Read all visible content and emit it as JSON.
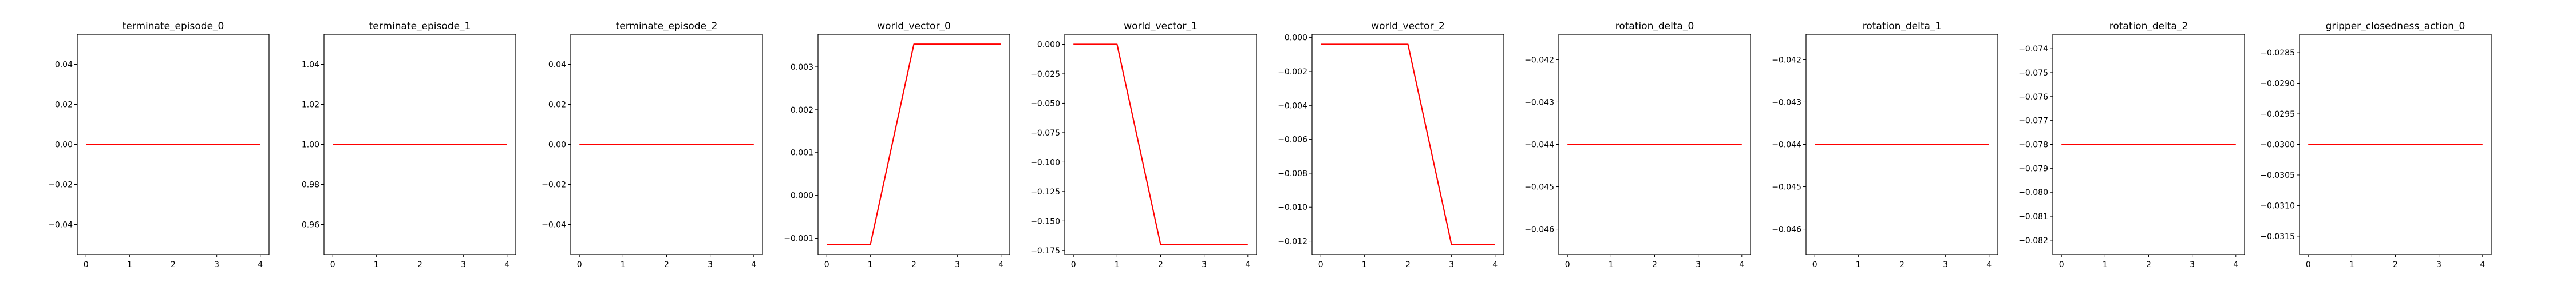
{
  "line_color": "#ff0000",
  "chart_data": [
    {
      "type": "line",
      "title": "terminate_episode_0",
      "x": [
        0,
        1,
        2,
        3,
        4
      ],
      "y": [
        0,
        0,
        0,
        0,
        0
      ],
      "xlim": [
        -0.2,
        4.2
      ],
      "ylim": [
        -0.055,
        0.055
      ],
      "yticks": [
        -0.04,
        -0.02,
        0.0,
        0.02,
        0.04
      ],
      "ytick_labels": [
        "−0.04",
        "−0.02",
        "0.00",
        "0.02",
        "0.04"
      ],
      "xticks": [
        0,
        1,
        2,
        3,
        4
      ],
      "xtick_labels": [
        "0",
        "1",
        "2",
        "3",
        "4"
      ]
    },
    {
      "type": "line",
      "title": "terminate_episode_1",
      "x": [
        0,
        1,
        2,
        3,
        4
      ],
      "y": [
        1,
        1,
        1,
        1,
        1
      ],
      "xlim": [
        -0.2,
        4.2
      ],
      "ylim": [
        0.945,
        1.055
      ],
      "yticks": [
        0.96,
        0.98,
        1.0,
        1.02,
        1.04
      ],
      "ytick_labels": [
        "0.96",
        "0.98",
        "1.00",
        "1.02",
        "1.04"
      ],
      "xticks": [
        0,
        1,
        2,
        3,
        4
      ],
      "xtick_labels": [
        "0",
        "1",
        "2",
        "3",
        "4"
      ]
    },
    {
      "type": "line",
      "title": "terminate_episode_2",
      "x": [
        0,
        1,
        2,
        3,
        4
      ],
      "y": [
        0,
        0,
        0,
        0,
        0
      ],
      "xlim": [
        -0.2,
        4.2
      ],
      "ylim": [
        -0.055,
        0.055
      ],
      "yticks": [
        -0.04,
        -0.02,
        0.0,
        0.02,
        0.04
      ],
      "ytick_labels": [
        "−0.04",
        "−0.02",
        "0.00",
        "0.02",
        "0.04"
      ],
      "xticks": [
        0,
        1,
        2,
        3,
        4
      ],
      "xtick_labels": [
        "0",
        "1",
        "2",
        "3",
        "4"
      ]
    },
    {
      "type": "line",
      "title": "world_vector_0",
      "x": [
        0,
        1,
        2,
        3,
        4
      ],
      "y": [
        -0.00115,
        -0.00115,
        0.00353,
        0.00353,
        0.00353
      ],
      "xlim": [
        -0.2,
        4.2
      ],
      "ylim": [
        -0.00138,
        0.00376
      ],
      "yticks": [
        -0.001,
        0.0,
        0.001,
        0.002,
        0.003
      ],
      "ytick_labels": [
        "−0.001",
        "0.000",
        "0.001",
        "0.002",
        "0.003"
      ],
      "xticks": [
        0,
        1,
        2,
        3,
        4
      ],
      "xtick_labels": [
        "0",
        "1",
        "2",
        "3",
        "4"
      ]
    },
    {
      "type": "line",
      "title": "world_vector_1",
      "x": [
        0,
        1,
        2,
        3,
        4
      ],
      "y": [
        0.0,
        0.0,
        -0.17,
        -0.17,
        -0.17
      ],
      "xlim": [
        -0.2,
        4.2
      ],
      "ylim": [
        -0.1785,
        0.0085
      ],
      "yticks": [
        0.0,
        -0.025,
        -0.05,
        -0.075,
        -0.1,
        -0.125,
        -0.15,
        -0.175
      ],
      "ytick_labels": [
        "0.000",
        "−0.025",
        "−0.050",
        "−0.075",
        "−0.100",
        "−0.125",
        "−0.150",
        "−0.175"
      ],
      "xticks": [
        0,
        1,
        2,
        3,
        4
      ],
      "xtick_labels": [
        "0",
        "1",
        "2",
        "3",
        "4"
      ]
    },
    {
      "type": "line",
      "title": "world_vector_2",
      "x": [
        0,
        1,
        2,
        3,
        4
      ],
      "y": [
        -0.0004,
        -0.0004,
        -0.0004,
        -0.0122,
        -0.0122
      ],
      "xlim": [
        -0.2,
        4.2
      ],
      "ylim": [
        -0.01279,
        0.00019
      ],
      "yticks": [
        0.0,
        -0.002,
        -0.004,
        -0.006,
        -0.008,
        -0.01,
        -0.012
      ],
      "ytick_labels": [
        "0.000",
        "−0.002",
        "−0.004",
        "−0.006",
        "−0.008",
        "−0.010",
        "−0.012"
      ],
      "xticks": [
        0,
        1,
        2,
        3,
        4
      ],
      "xtick_labels": [
        "0",
        "1",
        "2",
        "3",
        "4"
      ]
    },
    {
      "type": "line",
      "title": "rotation_delta_0",
      "x": [
        0,
        1,
        2,
        3,
        4
      ],
      "y": [
        -0.044,
        -0.044,
        -0.044,
        -0.044,
        -0.044
      ],
      "xlim": [
        -0.2,
        4.2
      ],
      "ylim": [
        -0.0466,
        -0.0414
      ],
      "yticks": [
        -0.046,
        -0.045,
        -0.044,
        -0.043,
        -0.042
      ],
      "ytick_labels": [
        "−0.046",
        "−0.045",
        "−0.044",
        "−0.043",
        "−0.042"
      ],
      "xticks": [
        0,
        1,
        2,
        3,
        4
      ],
      "xtick_labels": [
        "0",
        "1",
        "2",
        "3",
        "4"
      ]
    },
    {
      "type": "line",
      "title": "rotation_delta_1",
      "x": [
        0,
        1,
        2,
        3,
        4
      ],
      "y": [
        -0.044,
        -0.044,
        -0.044,
        -0.044,
        -0.044
      ],
      "xlim": [
        -0.2,
        4.2
      ],
      "ylim": [
        -0.0466,
        -0.0414
      ],
      "yticks": [
        -0.046,
        -0.045,
        -0.044,
        -0.043,
        -0.042
      ],
      "ytick_labels": [
        "−0.046",
        "−0.045",
        "−0.044",
        "−0.043",
        "−0.042"
      ],
      "xticks": [
        0,
        1,
        2,
        3,
        4
      ],
      "xtick_labels": [
        "0",
        "1",
        "2",
        "3",
        "4"
      ]
    },
    {
      "type": "line",
      "title": "rotation_delta_2",
      "x": [
        0,
        1,
        2,
        3,
        4
      ],
      "y": [
        -0.078,
        -0.078,
        -0.078,
        -0.078,
        -0.078
      ],
      "xlim": [
        -0.2,
        4.2
      ],
      "ylim": [
        -0.0826,
        -0.0734
      ],
      "yticks": [
        -0.082,
        -0.081,
        -0.08,
        -0.079,
        -0.078,
        -0.077,
        -0.076,
        -0.075,
        -0.074
      ],
      "ytick_labels": [
        "−0.082",
        "−0.081",
        "−0.080",
        "−0.079",
        "−0.078",
        "−0.077",
        "−0.076",
        "−0.075",
        "−0.074"
      ],
      "xticks": [
        0,
        1,
        2,
        3,
        4
      ],
      "xtick_labels": [
        "0",
        "1",
        "2",
        "3",
        "4"
      ]
    },
    {
      "type": "line",
      "title": "gripper_closedness_action_0",
      "x": [
        0,
        1,
        2,
        3,
        4
      ],
      "y": [
        -0.03,
        -0.03,
        -0.03,
        -0.03,
        -0.03
      ],
      "xlim": [
        -0.2,
        4.2
      ],
      "ylim": [
        -0.0318,
        -0.0282
      ],
      "yticks": [
        -0.0315,
        -0.031,
        -0.0305,
        -0.03,
        -0.0295,
        -0.029,
        -0.0285
      ],
      "ytick_labels": [
        "−0.0315",
        "−0.0310",
        "−0.0305",
        "−0.0300",
        "−0.0295",
        "−0.0290",
        "−0.0285"
      ],
      "xticks": [
        0,
        1,
        2,
        3,
        4
      ],
      "xtick_labels": [
        "0",
        "1",
        "2",
        "3",
        "4"
      ]
    }
  ]
}
